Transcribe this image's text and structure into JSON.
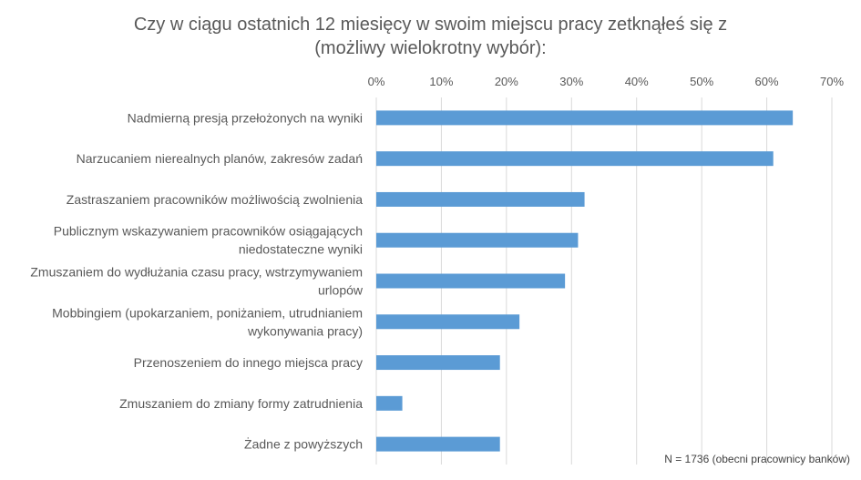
{
  "chart_data": {
    "type": "bar",
    "orientation": "horizontal",
    "title": "Czy w ciągu ostatnich 12 miesięcy w swoim miejscu pracy zetknąłeś się z\n(możliwy wielokrotny wybór):",
    "categories": [
      [
        "Nadmierną presją przełożonych na wyniki"
      ],
      [
        "Narzucaniem nierealnych planów, zakresów zadań"
      ],
      [
        "Zastraszaniem pracowników możliwością zwolnienia"
      ],
      [
        "Publicznym wskazywaniem pracowników osiągających",
        "niedostateczne wyniki"
      ],
      [
        "Zmuszaniem do wydłużania czasu pracy, wstrzymywaniem",
        "urlopów"
      ],
      [
        "Mobbingiem (upokarzaniem, poniżaniem, utrudnianiem",
        "wykonywania pracy)"
      ],
      [
        "Przenoszeniem do innego miejsca pracy"
      ],
      [
        "Zmuszaniem do zmiany formy zatrudnienia"
      ],
      [
        "Żadne z powyższych"
      ]
    ],
    "values": [
      0.64,
      0.61,
      0.32,
      0.31,
      0.29,
      0.22,
      0.19,
      0.04,
      0.19
    ],
    "xlim": [
      0,
      0.7
    ],
    "x_ticks": [
      "0%",
      "10%",
      "20%",
      "30%",
      "40%",
      "50%",
      "60%",
      "70%"
    ],
    "grid": true,
    "x_axis_position": "top",
    "bar_color": "#5B9BD5",
    "grid_color": "#D9D9D9"
  },
  "note": "N = 1736 (obecni pracownicy banków)"
}
